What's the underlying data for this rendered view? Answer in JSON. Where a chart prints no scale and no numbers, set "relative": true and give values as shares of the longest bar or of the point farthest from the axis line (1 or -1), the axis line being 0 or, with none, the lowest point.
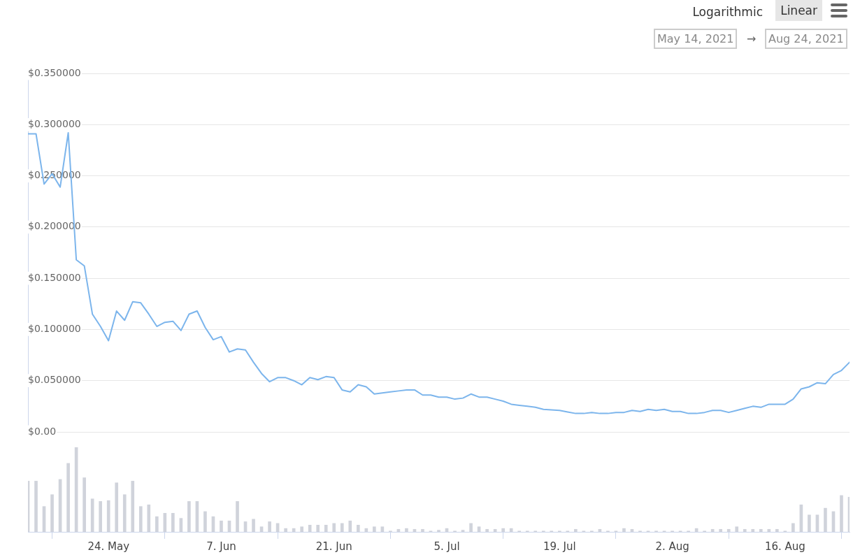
{
  "chart_data": [
    {
      "type": "line",
      "annotations": [
        "Logarithmic",
        "Linear",
        "May 14, 2021",
        "→",
        "Aug 24, 2021"
      ],
      "x": [
        "2021-05-14",
        "2021-05-15",
        "2021-05-16",
        "2021-05-17",
        "2021-05-18",
        "2021-05-19",
        "2021-05-20",
        "2021-05-21",
        "2021-05-22",
        "2021-05-23",
        "2021-05-24",
        "2021-05-25",
        "2021-05-26",
        "2021-05-27",
        "2021-05-28",
        "2021-05-29",
        "2021-05-30",
        "2021-05-31",
        "2021-06-01",
        "2021-06-02",
        "2021-06-03",
        "2021-06-04",
        "2021-06-05",
        "2021-06-06",
        "2021-06-07",
        "2021-06-08",
        "2021-06-09",
        "2021-06-10",
        "2021-06-11",
        "2021-06-12",
        "2021-06-13",
        "2021-06-14",
        "2021-06-15",
        "2021-06-16",
        "2021-06-17",
        "2021-06-18",
        "2021-06-19",
        "2021-06-20",
        "2021-06-21",
        "2021-06-22",
        "2021-06-23",
        "2021-06-24",
        "2021-06-25",
        "2021-06-26",
        "2021-06-27",
        "2021-06-28",
        "2021-06-29",
        "2021-06-30",
        "2021-07-01",
        "2021-07-02",
        "2021-07-03",
        "2021-07-04",
        "2021-07-05",
        "2021-07-06",
        "2021-07-07",
        "2021-07-08",
        "2021-07-09",
        "2021-07-10",
        "2021-07-11",
        "2021-07-12",
        "2021-07-13",
        "2021-07-14",
        "2021-07-15",
        "2021-07-16",
        "2021-07-17",
        "2021-07-18",
        "2021-07-19",
        "2021-07-20",
        "2021-07-21",
        "2021-07-22",
        "2021-07-23",
        "2021-07-24",
        "2021-07-25",
        "2021-07-26",
        "2021-07-27",
        "2021-07-28",
        "2021-07-29",
        "2021-07-30",
        "2021-07-31",
        "2021-08-01",
        "2021-08-02",
        "2021-08-03",
        "2021-08-04",
        "2021-08-05",
        "2021-08-06",
        "2021-08-07",
        "2021-08-08",
        "2021-08-09",
        "2021-08-10",
        "2021-08-11",
        "2021-08-12",
        "2021-08-13",
        "2021-08-14",
        "2021-08-15",
        "2021-08-16",
        "2021-08-17",
        "2021-08-18",
        "2021-08-19",
        "2021-08-20",
        "2021-08-21",
        "2021-08-22",
        "2021-08-23",
        "2021-08-24"
      ],
      "series": [
        {
          "color": "#7cb5ec",
          "values": [
            0.291,
            0.291,
            0.242,
            0.252,
            0.239,
            0.292,
            0.168,
            0.162,
            0.115,
            0.103,
            0.089,
            0.118,
            0.109,
            0.127,
            0.126,
            0.115,
            0.103,
            0.107,
            0.108,
            0.099,
            0.115,
            0.118,
            0.102,
            0.09,
            0.093,
            0.078,
            0.081,
            0.08,
            0.068,
            0.057,
            0.049,
            0.053,
            0.053,
            0.05,
            0.046,
            0.053,
            0.051,
            0.054,
            0.053,
            0.041,
            0.039,
            0.046,
            0.044,
            0.037,
            0.038,
            0.039,
            0.04,
            0.041,
            0.041,
            0.036,
            0.036,
            0.034,
            0.034,
            0.032,
            0.033,
            0.037,
            0.034,
            0.034,
            0.032,
            0.03,
            0.027,
            0.026,
            0.025,
            0.024,
            0.022,
            0.0215,
            0.021,
            0.0195,
            0.018,
            0.018,
            0.019,
            0.018,
            0.018,
            0.019,
            0.019,
            0.021,
            0.02,
            0.022,
            0.021,
            0.022,
            0.02,
            0.02,
            0.018,
            0.018,
            0.019,
            0.021,
            0.021,
            0.019,
            0.021,
            0.023,
            0.025,
            0.024,
            0.027,
            0.027,
            0.027,
            0.032,
            0.042,
            0.044,
            0.048,
            0.047,
            0.056,
            0.06,
            0.068
          ]
        }
      ],
      "xlim": [
        "2021-05-14",
        "2021-08-24"
      ],
      "ylim": [
        0,
        0.35
      ],
      "yticks": [
        {
          "value": 0,
          "label": "$0.00"
        },
        {
          "value": 0.05,
          "label": "$0.050000"
        },
        {
          "value": 0.1,
          "label": "$0.100000"
        },
        {
          "value": 0.15,
          "label": "$0.150000"
        },
        {
          "value": 0.2,
          "label": "$0.200000"
        },
        {
          "value": 0.25,
          "label": "$0.250000"
        },
        {
          "value": 0.3,
          "label": "$0.300000"
        },
        {
          "value": 0.35,
          "label": "$0.350000"
        }
      ],
      "grid": "y",
      "tick_labels": "y",
      "marker": "none",
      "line_style": "solid"
    },
    {
      "type": "bar",
      "relative": true,
      "color": "#d0d3db",
      "x": [
        "2021-05-14",
        "2021-05-15",
        "2021-05-16",
        "2021-05-17",
        "2021-05-18",
        "2021-05-19",
        "2021-05-20",
        "2021-05-21",
        "2021-05-22",
        "2021-05-23",
        "2021-05-24",
        "2021-05-25",
        "2021-05-26",
        "2021-05-27",
        "2021-05-28",
        "2021-05-29",
        "2021-05-30",
        "2021-05-31",
        "2021-06-01",
        "2021-06-02",
        "2021-06-03",
        "2021-06-04",
        "2021-06-05",
        "2021-06-06",
        "2021-06-07",
        "2021-06-08",
        "2021-06-09",
        "2021-06-10",
        "2021-06-11",
        "2021-06-12",
        "2021-06-13",
        "2021-06-14",
        "2021-06-15",
        "2021-06-16",
        "2021-06-17",
        "2021-06-18",
        "2021-06-19",
        "2021-06-20",
        "2021-06-21",
        "2021-06-22",
        "2021-06-23",
        "2021-06-24",
        "2021-06-25",
        "2021-06-26",
        "2021-06-27",
        "2021-06-28",
        "2021-06-29",
        "2021-06-30",
        "2021-07-01",
        "2021-07-02",
        "2021-07-03",
        "2021-07-04",
        "2021-07-05",
        "2021-07-06",
        "2021-07-07",
        "2021-07-08",
        "2021-07-09",
        "2021-07-10",
        "2021-07-11",
        "2021-07-12",
        "2021-07-13",
        "2021-07-14",
        "2021-07-15",
        "2021-07-16",
        "2021-07-17",
        "2021-07-18",
        "2021-07-19",
        "2021-07-20",
        "2021-07-21",
        "2021-07-22",
        "2021-07-23",
        "2021-07-24",
        "2021-07-25",
        "2021-07-26",
        "2021-07-27",
        "2021-07-28",
        "2021-07-29",
        "2021-07-30",
        "2021-07-31",
        "2021-08-01",
        "2021-08-02",
        "2021-08-03",
        "2021-08-04",
        "2021-08-05",
        "2021-08-06",
        "2021-08-07",
        "2021-08-08",
        "2021-08-09",
        "2021-08-10",
        "2021-08-11",
        "2021-08-12",
        "2021-08-13",
        "2021-08-14",
        "2021-08-15",
        "2021-08-16",
        "2021-08-17",
        "2021-08-18",
        "2021-08-19",
        "2021-08-20",
        "2021-08-21",
        "2021-08-22",
        "2021-08-23",
        "2021-08-24"
      ],
      "values": [
        0.6,
        0.6,
        0.3,
        0.44,
        0.62,
        0.81,
        1,
        0.64,
        0.39,
        0.36,
        0.37,
        0.58,
        0.44,
        0.6,
        0.3,
        0.32,
        0.18,
        0.22,
        0.22,
        0.16,
        0.36,
        0.36,
        0.24,
        0.18,
        0.13,
        0.13,
        0.36,
        0.12,
        0.15,
        0.06,
        0.12,
        0.1,
        0.04,
        0.04,
        0.06,
        0.08,
        0.08,
        0.08,
        0.1,
        0.1,
        0.13,
        0.08,
        0.04,
        0.06,
        0.06,
        0.01,
        0.03,
        0.04,
        0.03,
        0.03,
        0.01,
        0.02,
        0.04,
        0.01,
        0.02,
        0.1,
        0.06,
        0.03,
        0.03,
        0.04,
        0.04,
        0.01,
        0.01,
        0.01,
        0.01,
        0.01,
        0.01,
        0.01,
        0.03,
        0.01,
        0.01,
        0.03,
        0.01,
        0.01,
        0.04,
        0.03,
        0.01,
        0.01,
        0.01,
        0.01,
        0.01,
        0.01,
        0.01,
        0.04,
        0.01,
        0.03,
        0.03,
        0.03,
        0.06,
        0.03,
        0.03,
        0.03,
        0.03,
        0.03,
        0.01,
        0.1,
        0.32,
        0.2,
        0.2,
        0.28,
        0.24,
        0.43,
        0.41
      ],
      "xlim": [
        "2021-05-14",
        "2021-08-24"
      ],
      "xticks": [
        {
          "value": "2021-05-24",
          "label": "24. May"
        },
        {
          "value": "2021-06-07",
          "label": "7. Jun"
        },
        {
          "value": "2021-06-21",
          "label": "21. Jun"
        },
        {
          "value": "2021-07-05",
          "label": "5. Jul"
        },
        {
          "value": "2021-07-19",
          "label": "19. Jul"
        },
        {
          "value": "2021-08-02",
          "label": "2. Aug"
        },
        {
          "value": "2021-08-16",
          "label": "16. Aug"
        }
      ],
      "tick_labels": "x"
    }
  ]
}
